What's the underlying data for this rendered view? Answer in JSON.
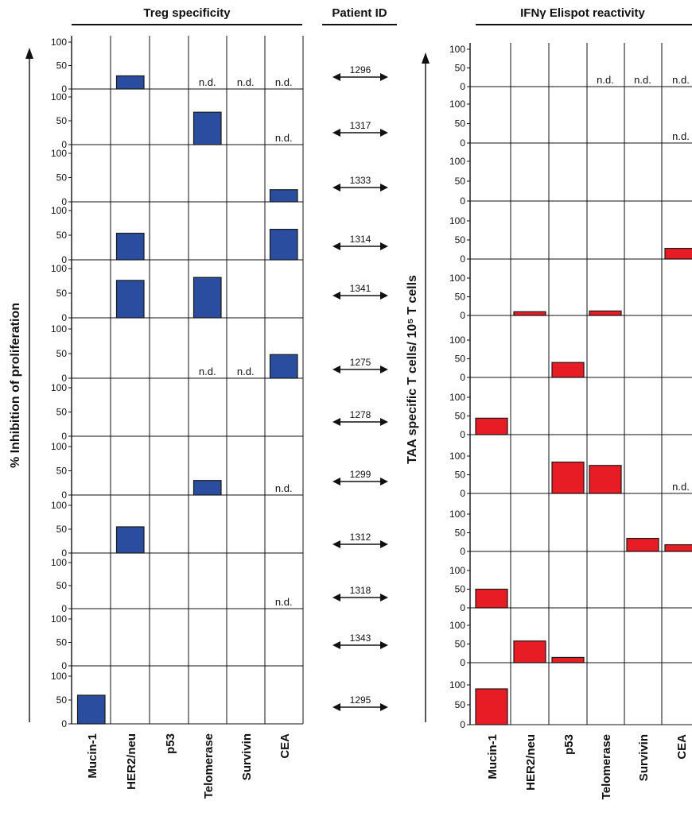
{
  "headers": {
    "treg": "Treg specificity",
    "patient": "Patient ID",
    "ifng": "IFNγ Elispot reactivity"
  },
  "left_ylabel": "% Inhibition of proliferation",
  "right_ylabel": "TAA specific T cells/ 10⁵ T cells",
  "nd_text": "n.d.",
  "chart_data": [
    {
      "type": "bar",
      "title": "Treg specificity",
      "xlabel": "",
      "ylabel": "% Inhibition of proliferation",
      "ylim": [
        0,
        100
      ],
      "yticks": [
        "0",
        "50",
        "100"
      ],
      "categories": [
        "Mucin-1",
        "HER2/neu",
        "p53",
        "Telomerase",
        "Survivin",
        "CEA"
      ],
      "panels": [
        {
          "patient": "1296",
          "values": [
            0,
            28,
            0,
            null,
            null,
            null
          ]
        },
        {
          "patient": "1317",
          "values": [
            0,
            0,
            0,
            68,
            0,
            null
          ]
        },
        {
          "patient": "1333",
          "values": [
            0,
            0,
            0,
            0,
            0,
            25
          ]
        },
        {
          "patient": "1314",
          "values": [
            0,
            54,
            0,
            0,
            0,
            62
          ]
        },
        {
          "patient": "1341",
          "values": [
            0,
            76,
            0,
            82,
            0,
            0
          ]
        },
        {
          "patient": "1275",
          "values": [
            0,
            0,
            0,
            null,
            null,
            48
          ]
        },
        {
          "patient": "1278",
          "values": [
            0,
            0,
            0,
            0,
            0,
            0
          ]
        },
        {
          "patient": "1299",
          "values": [
            0,
            0,
            0,
            30,
            0,
            null
          ]
        },
        {
          "patient": "1312",
          "values": [
            0,
            55,
            0,
            0,
            0,
            0
          ]
        },
        {
          "patient": "1318",
          "values": [
            0,
            0,
            0,
            0,
            0,
            null
          ]
        },
        {
          "patient": "1343",
          "values": [
            0,
            0,
            0,
            0,
            0,
            0
          ]
        },
        {
          "patient": "1295",
          "values": [
            60,
            0,
            0,
            0,
            0,
            0
          ]
        }
      ]
    },
    {
      "type": "bar",
      "title": "IFNγ Elispot reactivity",
      "xlabel": "",
      "ylabel": "TAA specific T cells/ 10⁵ T cells",
      "ylim": [
        0,
        100
      ],
      "yticks": [
        "0",
        "50",
        "100"
      ],
      "categories": [
        "Mucin-1",
        "HER2/neu",
        "p53",
        "Telomerase",
        "Survivin",
        "CEA"
      ],
      "panels": [
        {
          "patient": "1296",
          "values": [
            0,
            0,
            0,
            null,
            null,
            null
          ]
        },
        {
          "patient": "1317",
          "values": [
            0,
            0,
            0,
            0,
            0,
            null
          ]
        },
        {
          "patient": "1333",
          "values": [
            0,
            0,
            0,
            0,
            0,
            0
          ]
        },
        {
          "patient": "1314",
          "values": [
            0,
            0,
            0,
            0,
            0,
            28
          ]
        },
        {
          "patient": "1341",
          "values": [
            0,
            10,
            0,
            12,
            0,
            0
          ]
        },
        {
          "patient": "1275",
          "values": [
            0,
            0,
            40,
            0,
            0,
            0
          ]
        },
        {
          "patient": "1278",
          "values": [
            44,
            0,
            0,
            0,
            0,
            0
          ]
        },
        {
          "patient": "1299",
          "values": [
            0,
            0,
            84,
            75,
            0,
            null
          ]
        },
        {
          "patient": "1312",
          "values": [
            0,
            0,
            0,
            0,
            35,
            18
          ]
        },
        {
          "patient": "1318",
          "values": [
            50,
            0,
            0,
            0,
            0,
            0
          ]
        },
        {
          "patient": "1343",
          "values": [
            0,
            58,
            14,
            0,
            0,
            0
          ]
        },
        {
          "patient": "1295",
          "values": [
            90,
            0,
            0,
            0,
            0,
            0
          ]
        }
      ]
    }
  ],
  "colors": {
    "treg_bar": "#2a4da0",
    "ifng_bar": "#e81c24",
    "line": "#111111"
  }
}
